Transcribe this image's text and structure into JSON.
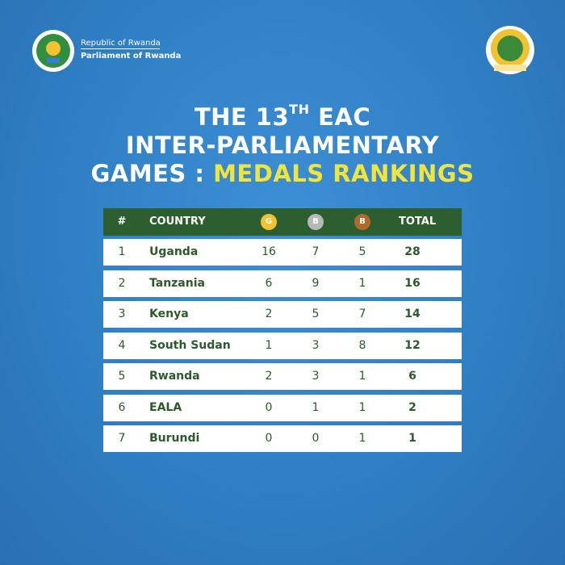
{
  "header": {
    "line1": "Republic of Rwanda",
    "line2": "Parliament of Rwanda"
  },
  "title": {
    "line1_a": "THE 13",
    "line1_sup": "TH",
    "line1_b": "EAC",
    "line2": "INTER-PARLIAMENTARY",
    "line3_a": "GAMES : ",
    "line3_b": "MEDALS RANKINGS"
  },
  "table": {
    "columns": [
      "#",
      "COUNTRY",
      "G",
      "B",
      "B",
      "TOTAL"
    ],
    "rows": [
      [
        1,
        "Uganda",
        16,
        7,
        5,
        28
      ],
      [
        2,
        "Tanzania",
        6,
        9,
        1,
        16
      ],
      [
        3,
        "Kenya",
        2,
        5,
        7,
        14
      ],
      [
        4,
        "South Sudan",
        1,
        3,
        8,
        12
      ],
      [
        5,
        "Rwanda",
        2,
        3,
        1,
        6
      ],
      [
        6,
        "EALA",
        0,
        1,
        1,
        2
      ],
      [
        7,
        "Burundi",
        0,
        0,
        1,
        1
      ]
    ]
  }
}
